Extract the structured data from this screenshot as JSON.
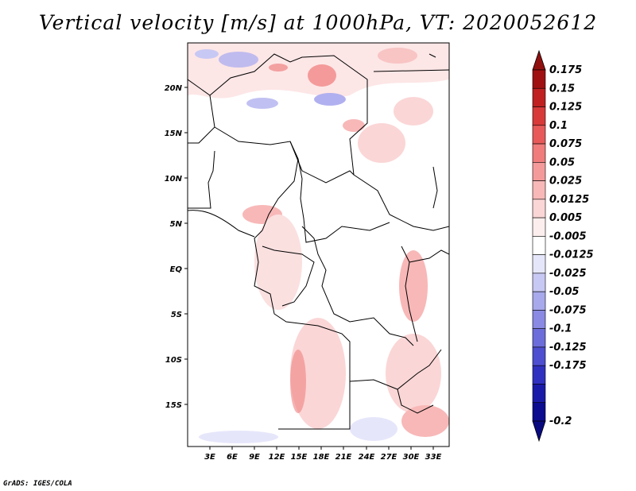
{
  "title": "Vertical velocity [m/s] at 1000hPa, VT: 2020052612",
  "credit": "GrADS: IGES/COLA",
  "map": {
    "lat_labels": [
      "20N",
      "15N",
      "10N",
      "5N",
      "EQ",
      "5S",
      "10S",
      "15S"
    ],
    "lon_labels": [
      "3E",
      "6E",
      "9E",
      "12E",
      "15E",
      "18E",
      "21E",
      "24E",
      "27E",
      "30E",
      "33E"
    ]
  },
  "colorbar": {
    "labels": [
      "0.175",
      "0.15",
      "0.125",
      "0.1",
      "0.075",
      "0.05",
      "0.025",
      "0.0125",
      "0.005",
      "-0.005",
      "-0.0125",
      "-0.025",
      "-0.05",
      "-0.075",
      "-0.1",
      "-0.125",
      "-0.175",
      "-0.2"
    ],
    "colors": [
      "#a01010",
      "#c02020",
      "#d83a3a",
      "#e85a5a",
      "#f07c7c",
      "#f59a9a",
      "#f8b8b8",
      "#fbd6d6",
      "#fdeeee",
      "#ffffff",
      "#e6e6fb",
      "#c8c8f4",
      "#a8a8ec",
      "#8a8ae4",
      "#6c6cda",
      "#4e4ed0",
      "#3030c0",
      "#1a1aa8",
      "#0c0c90"
    ],
    "top_triangle_color": "#901010",
    "bottom_triangle_color": "#0a0a80"
  }
}
